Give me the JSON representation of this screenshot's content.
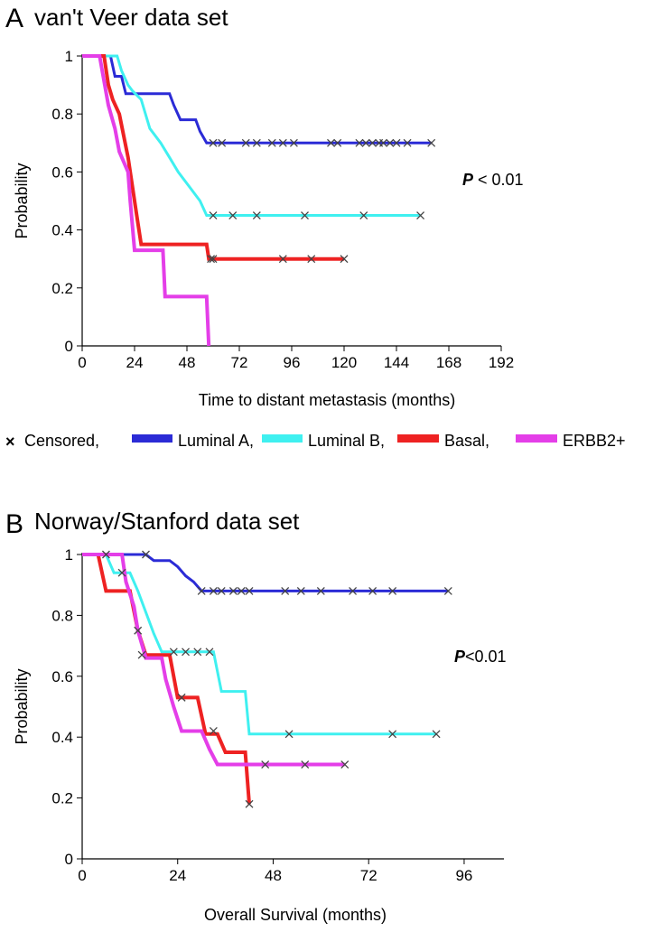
{
  "legend": {
    "censor_symbol": "×",
    "items": [
      {
        "label": "Censored,",
        "color": null
      },
      {
        "label": "Luminal A,",
        "color": "#2b2bd6"
      },
      {
        "label": "Luminal B,",
        "color": "#3ff0f0"
      },
      {
        "label": "Basal,",
        "color": "#ee2222"
      },
      {
        "label": "ERBB2+",
        "color": "#e43ee8"
      }
    ]
  },
  "chart_data": [
    {
      "type": "line",
      "panel_letter": "A",
      "title": "van't Veer data set",
      "xlabel": "Time to distant metastasis (months)",
      "ylabel": "Probability",
      "xticks": [
        "0",
        "24",
        "48",
        "72",
        "96",
        "120",
        "144",
        "168",
        "192"
      ],
      "yticks": [
        "0",
        "0.2",
        "0.4",
        "0.6",
        "0.8",
        "1"
      ],
      "xlim": [
        0,
        192
      ],
      "ylim": [
        0,
        1
      ],
      "p_prefix": "P",
      "p_suffix": " < 0.01",
      "series": [
        {
          "name": "Luminal A",
          "color": "#2b2bd6",
          "width": 3,
          "points": [
            [
              0,
              1
            ],
            [
              13,
              1
            ],
            [
              15,
              0.93
            ],
            [
              18,
              0.93
            ],
            [
              20,
              0.87
            ],
            [
              40,
              0.87
            ],
            [
              42,
              0.83
            ],
            [
              45,
              0.78
            ],
            [
              52,
              0.78
            ],
            [
              54,
              0.74
            ],
            [
              57,
              0.7
            ],
            [
              160,
              0.7
            ]
          ],
          "censored": [
            [
              60,
              0.7
            ],
            [
              64,
              0.7
            ],
            [
              75,
              0.7
            ],
            [
              80,
              0.7
            ],
            [
              87,
              0.7
            ],
            [
              92,
              0.7
            ],
            [
              97,
              0.7
            ],
            [
              114,
              0.7
            ],
            [
              117,
              0.7
            ],
            [
              127,
              0.7
            ],
            [
              130,
              0.7
            ],
            [
              133,
              0.7
            ],
            [
              136,
              0.7
            ],
            [
              138,
              0.7
            ],
            [
              141,
              0.7
            ],
            [
              144,
              0.7
            ],
            [
              149,
              0.7
            ],
            [
              160,
              0.7
            ]
          ]
        },
        {
          "name": "Luminal B",
          "color": "#3ff0f0",
          "width": 3,
          "points": [
            [
              0,
              1
            ],
            [
              16,
              1
            ],
            [
              18,
              0.95
            ],
            [
              21,
              0.9
            ],
            [
              23,
              0.88
            ],
            [
              27,
              0.85
            ],
            [
              31,
              0.75
            ],
            [
              36,
              0.7
            ],
            [
              40,
              0.65
            ],
            [
              44,
              0.6
            ],
            [
              49,
              0.55
            ],
            [
              54,
              0.5
            ],
            [
              57,
              0.45
            ],
            [
              155,
              0.45
            ]
          ],
          "censored": [
            [
              60,
              0.45
            ],
            [
              69,
              0.45
            ],
            [
              80,
              0.45
            ],
            [
              102,
              0.45
            ],
            [
              129,
              0.45
            ],
            [
              155,
              0.45
            ]
          ]
        },
        {
          "name": "Basal",
          "color": "#ee2222",
          "width": 4,
          "points": [
            [
              0,
              1
            ],
            [
              10,
              1
            ],
            [
              12,
              0.9
            ],
            [
              14,
              0.85
            ],
            [
              17,
              0.8
            ],
            [
              21,
              0.65
            ],
            [
              23,
              0.55
            ],
            [
              25,
              0.45
            ],
            [
              27,
              0.35
            ],
            [
              57,
              0.35
            ],
            [
              58,
              0.3
            ],
            [
              120,
              0.3
            ]
          ],
          "censored": [
            [
              59,
              0.3
            ],
            [
              60,
              0.3
            ],
            [
              92,
              0.3
            ],
            [
              105,
              0.3
            ],
            [
              120,
              0.3
            ]
          ]
        },
        {
          "name": "ERBB2+",
          "color": "#e43ee8",
          "width": 4,
          "points": [
            [
              0,
              1
            ],
            [
              8,
              1
            ],
            [
              12,
              0.83
            ],
            [
              15,
              0.75
            ],
            [
              17,
              0.67
            ],
            [
              21,
              0.6
            ],
            [
              22,
              0.5
            ],
            [
              24,
              0.33
            ],
            [
              37,
              0.33
            ],
            [
              38,
              0.17
            ],
            [
              57,
              0.17
            ],
            [
              58,
              0
            ]
          ],
          "censored": []
        }
      ]
    },
    {
      "type": "line",
      "panel_letter": "B",
      "title": "Norway/Stanford data set",
      "xlabel": "Overall Survival (months)",
      "ylabel": "Probability",
      "xticks": [
        "0",
        "24",
        "48",
        "72",
        "96"
      ],
      "yticks": [
        "0",
        "0.2",
        "0.4",
        "0.6",
        "0.8",
        "1"
      ],
      "xlim": [
        0,
        106
      ],
      "ylim": [
        0,
        1
      ],
      "p_prefix": "P",
      "p_suffix": "<0.01",
      "series": [
        {
          "name": "Luminal A",
          "color": "#2b2bd6",
          "width": 3,
          "points": [
            [
              0,
              1
            ],
            [
              16,
              1
            ],
            [
              18,
              0.98
            ],
            [
              22,
              0.98
            ],
            [
              24,
              0.96
            ],
            [
              26,
              0.93
            ],
            [
              28,
              0.91
            ],
            [
              30,
              0.88
            ],
            [
              92,
              0.88
            ]
          ],
          "censored": [
            [
              6,
              1
            ],
            [
              16,
              1
            ],
            [
              30,
              0.88
            ],
            [
              33,
              0.88
            ],
            [
              35,
              0.88
            ],
            [
              38,
              0.88
            ],
            [
              40,
              0.88
            ],
            [
              42,
              0.88
            ],
            [
              51,
              0.88
            ],
            [
              55,
              0.88
            ],
            [
              60,
              0.88
            ],
            [
              68,
              0.88
            ],
            [
              73,
              0.88
            ],
            [
              78,
              0.88
            ],
            [
              92,
              0.88
            ]
          ]
        },
        {
          "name": "Luminal B",
          "color": "#3ff0f0",
          "width": 3,
          "points": [
            [
              0,
              1
            ],
            [
              6,
              1
            ],
            [
              8,
              0.94
            ],
            [
              12,
              0.94
            ],
            [
              14,
              0.88
            ],
            [
              16,
              0.81
            ],
            [
              18,
              0.74
            ],
            [
              20,
              0.68
            ],
            [
              33,
              0.68
            ],
            [
              35,
              0.55
            ],
            [
              41,
              0.55
            ],
            [
              42,
              0.41
            ],
            [
              89,
              0.41
            ]
          ],
          "censored": [
            [
              10,
              0.94
            ],
            [
              23,
              0.68
            ],
            [
              26,
              0.68
            ],
            [
              29,
              0.68
            ],
            [
              32,
              0.68
            ],
            [
              52,
              0.41
            ],
            [
              78,
              0.41
            ],
            [
              89,
              0.41
            ]
          ]
        },
        {
          "name": "Basal",
          "color": "#ee2222",
          "width": 4,
          "points": [
            [
              0,
              1
            ],
            [
              4,
              1
            ],
            [
              6,
              0.88
            ],
            [
              12,
              0.88
            ],
            [
              14,
              0.75
            ],
            [
              16,
              0.67
            ],
            [
              22,
              0.67
            ],
            [
              24,
              0.53
            ],
            [
              29,
              0.53
            ],
            [
              31,
              0.41
            ],
            [
              34,
              0.41
            ],
            [
              36,
              0.35
            ],
            [
              41,
              0.35
            ],
            [
              42,
              0.18
            ]
          ],
          "censored": [
            [
              14,
              0.75
            ],
            [
              25,
              0.53
            ],
            [
              33,
              0.42
            ],
            [
              42,
              0.18
            ]
          ]
        },
        {
          "name": "ERBB2+",
          "color": "#e43ee8",
          "width": 4,
          "points": [
            [
              0,
              1
            ],
            [
              10,
              1
            ],
            [
              11,
              0.91
            ],
            [
              13,
              0.83
            ],
            [
              14,
              0.75
            ],
            [
              16,
              0.66
            ],
            [
              20,
              0.66
            ],
            [
              21,
              0.59
            ],
            [
              23,
              0.5
            ],
            [
              25,
              0.42
            ],
            [
              30,
              0.42
            ],
            [
              32,
              0.36
            ],
            [
              34,
              0.31
            ],
            [
              66,
              0.31
            ]
          ],
          "censored": [
            [
              15,
              0.67
            ],
            [
              46,
              0.31
            ],
            [
              56,
              0.31
            ],
            [
              66,
              0.31
            ]
          ]
        }
      ]
    }
  ]
}
